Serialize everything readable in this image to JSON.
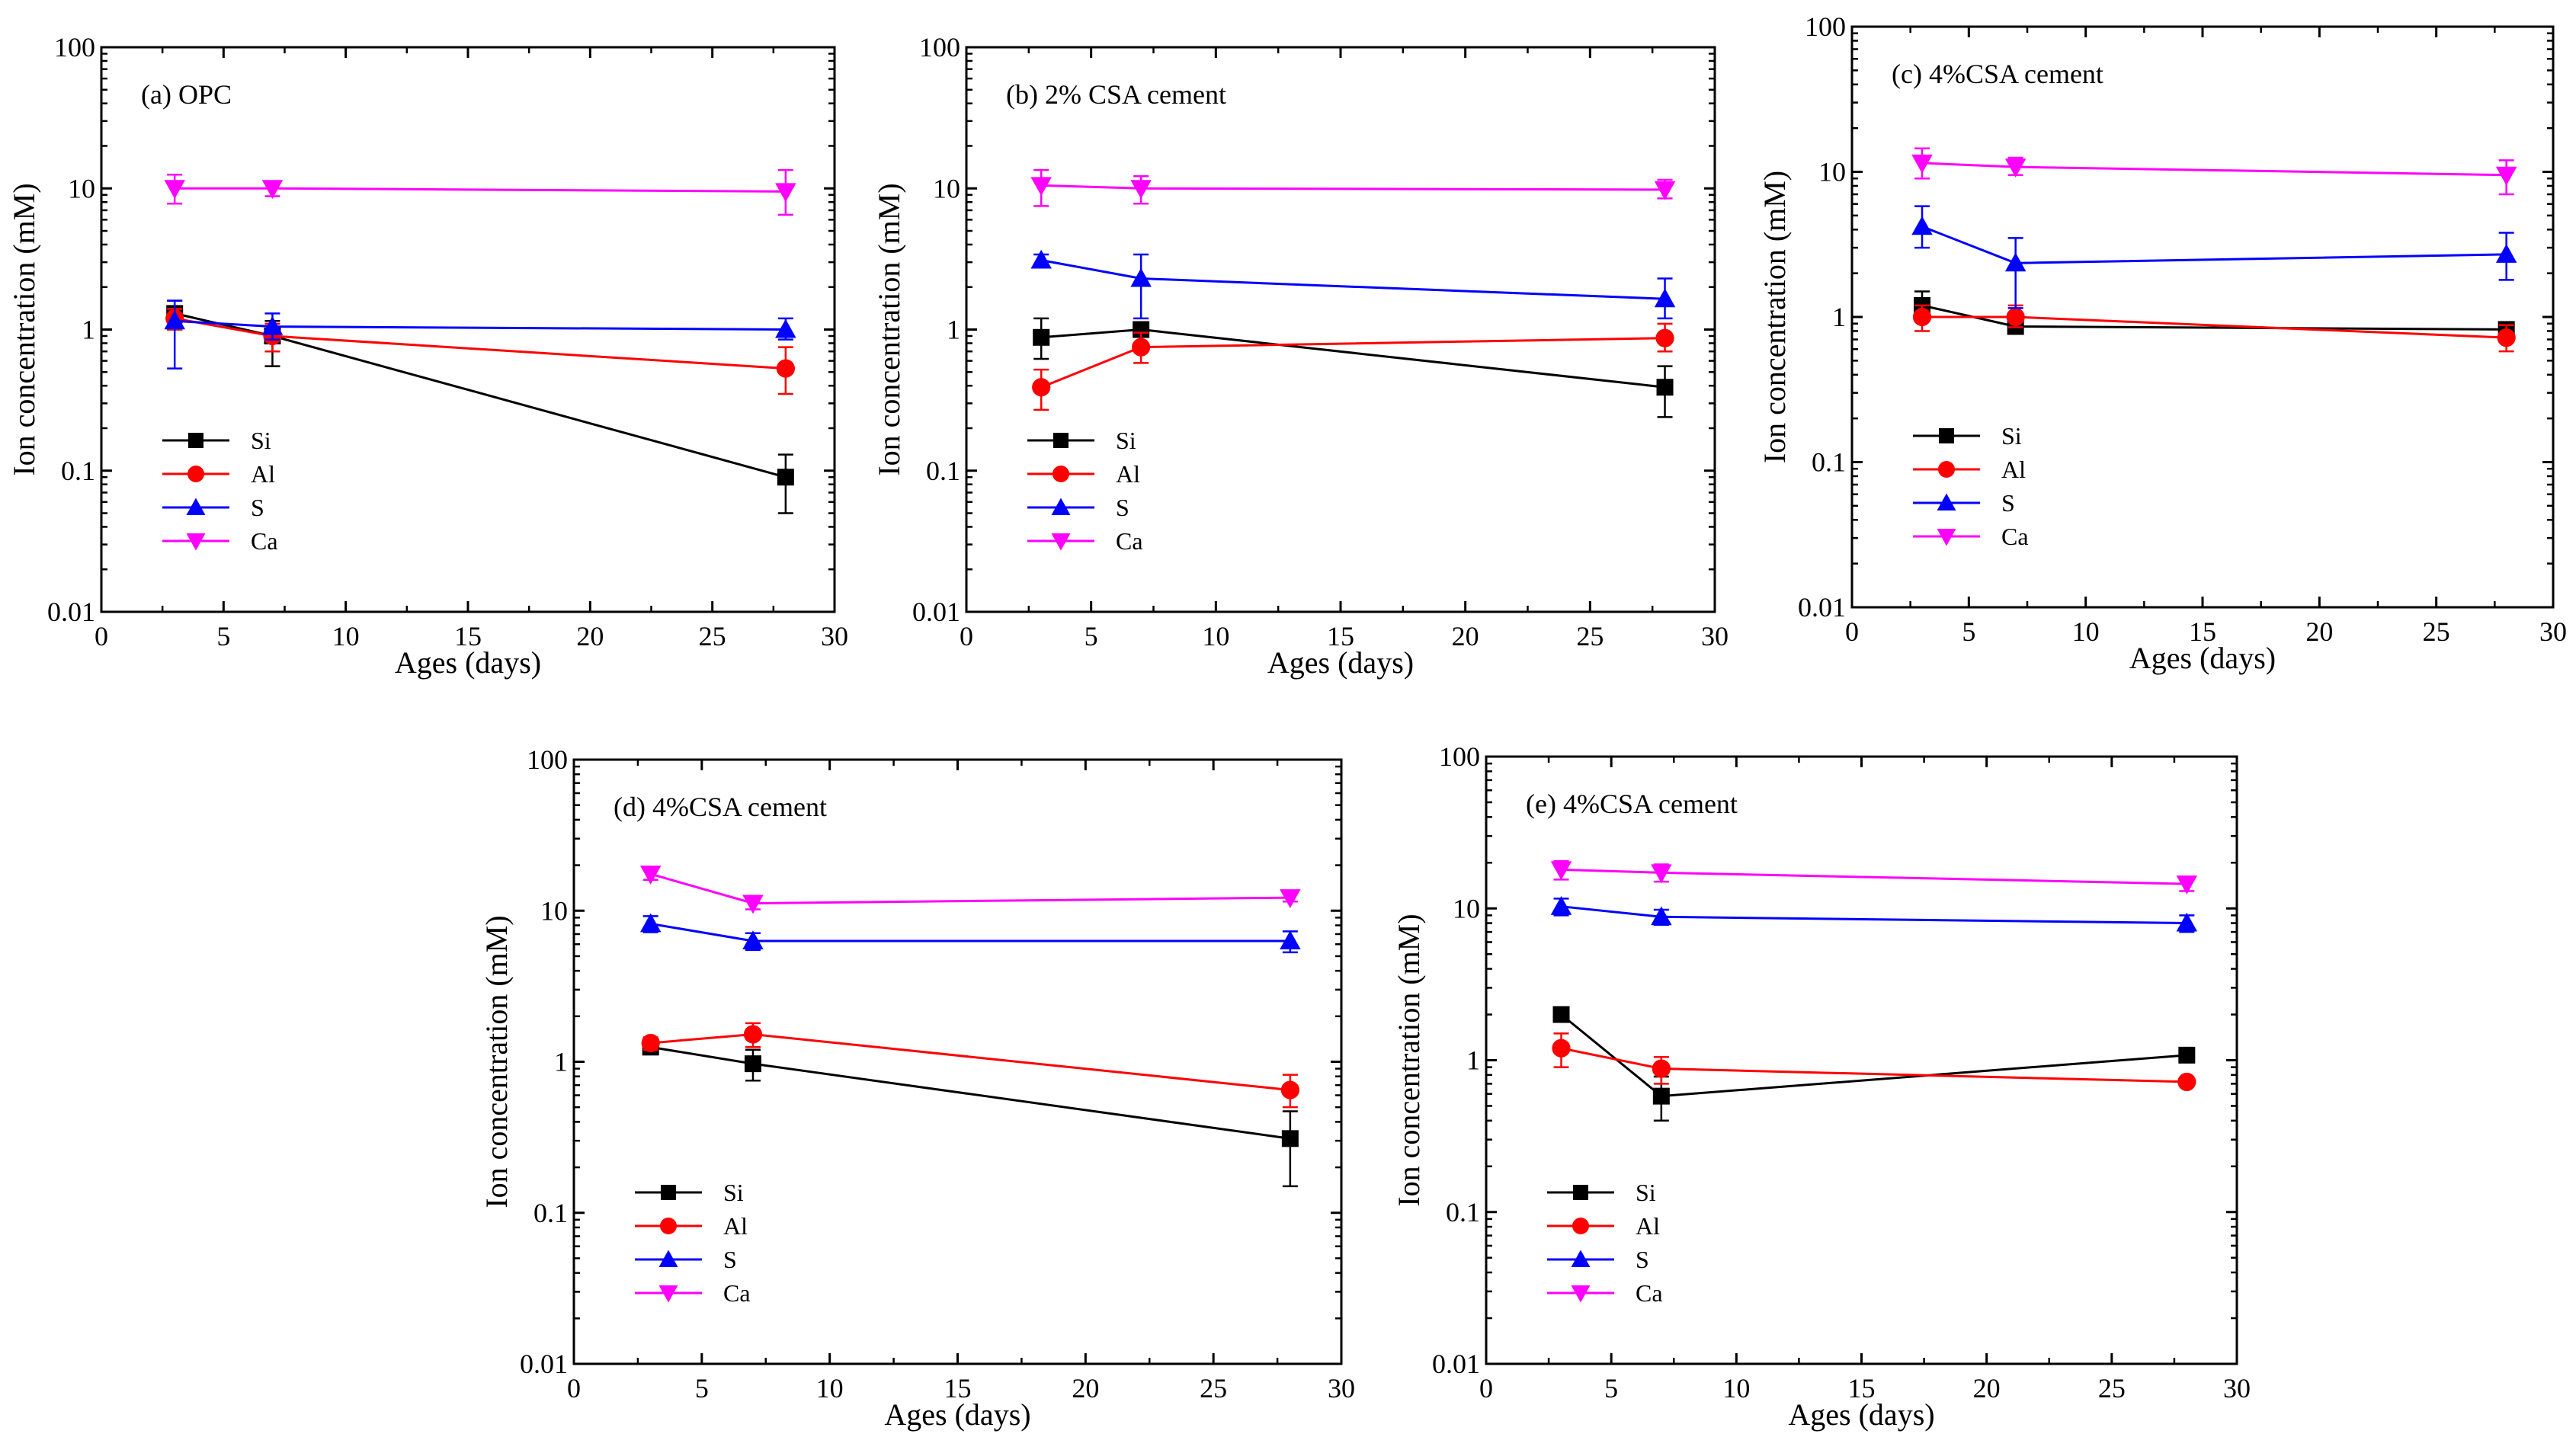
{
  "figure": {
    "xticks": [
      0,
      5,
      10,
      15,
      20,
      25,
      30
    ],
    "yticks": [
      {
        "value": 0.01,
        "label": "0.01"
      },
      {
        "value": 0.1,
        "label": "0.1"
      },
      {
        "value": 1,
        "label": "1"
      },
      {
        "value": 10,
        "label": "10"
      },
      {
        "value": 100,
        "label": "100"
      }
    ]
  },
  "chart_data": [
    {
      "type": "line",
      "title": "(a) OPC",
      "xlabel": "Ages (days)",
      "ylabel": "Ion concentration (mM)",
      "xlim": [
        0,
        30
      ],
      "ylim": [
        0.01,
        100
      ],
      "yscale": "log",
      "legend": "lower-left",
      "x": [
        3,
        7,
        28
      ],
      "series": [
        {
          "name": "Si",
          "marker": "square",
          "color": "#000000",
          "values": [
            1.3,
            0.9,
            0.09
          ],
          "err": [
            [
              1.0,
              1.6
            ],
            [
              0.55,
              1.15
            ],
            [
              0.05,
              0.13
            ]
          ]
        },
        {
          "name": "Al",
          "marker": "circle",
          "color": "#ff0000",
          "values": [
            1.2,
            0.9,
            0.53
          ],
          "err": [
            [
              1.0,
              1.4
            ],
            [
              0.7,
              1.1
            ],
            [
              0.35,
              0.75
            ]
          ]
        },
        {
          "name": "S",
          "marker": "triangle-up",
          "color": "#0000ff",
          "values": [
            1.15,
            1.05,
            1.0
          ],
          "err": [
            [
              0.53,
              1.6
            ],
            [
              0.85,
              1.3
            ],
            [
              0.85,
              1.2
            ]
          ]
        },
        {
          "name": "Ca",
          "marker": "triangle-down",
          "color": "#ff00ff",
          "values": [
            10.0,
            10.0,
            9.5
          ],
          "err": [
            [
              7.8,
              12.5
            ],
            [
              8.8,
              11.0
            ],
            [
              6.5,
              13.5
            ]
          ]
        }
      ]
    },
    {
      "type": "line",
      "title": "(b) 2% CSA cement",
      "xlabel": "Ages (days)",
      "ylabel": "Ion concentration (mM)",
      "xlim": [
        0,
        30
      ],
      "ylim": [
        0.01,
        100
      ],
      "yscale": "log",
      "legend": "lower-left",
      "x": [
        3,
        7,
        28
      ],
      "series": [
        {
          "name": "Si",
          "marker": "square",
          "color": "#000000",
          "values": [
            0.88,
            1.0,
            0.39
          ],
          "err": [
            [
              0.62,
              1.2
            ],
            [
              0.9,
              1.1
            ],
            [
              0.24,
              0.55
            ]
          ]
        },
        {
          "name": "Al",
          "marker": "circle",
          "color": "#ff0000",
          "values": [
            0.39,
            0.75,
            0.87
          ],
          "err": [
            [
              0.27,
              0.52
            ],
            [
              0.58,
              0.95
            ],
            [
              0.7,
              1.1
            ]
          ]
        },
        {
          "name": "S",
          "marker": "triangle-up",
          "color": "#0000ff",
          "values": [
            3.1,
            2.3,
            1.65
          ],
          "err": [
            [
              2.8,
              3.4
            ],
            [
              1.2,
              3.4
            ],
            [
              1.2,
              2.3
            ]
          ]
        },
        {
          "name": "Ca",
          "marker": "triangle-down",
          "color": "#ff00ff",
          "values": [
            10.5,
            10.0,
            9.8
          ],
          "err": [
            [
              7.5,
              13.5
            ],
            [
              7.8,
              12.2
            ],
            [
              8.5,
              11.5
            ]
          ]
        }
      ]
    },
    {
      "type": "line",
      "title": "(c) 4%CSA cement",
      "xlabel": "Ages (days)",
      "ylabel": "Ion concentration (mM)",
      "xlim": [
        0,
        30
      ],
      "ylim": [
        0.01,
        100
      ],
      "yscale": "log",
      "legend": "lower-left",
      "x": [
        3,
        7,
        28
      ],
      "series": [
        {
          "name": "Si",
          "marker": "square",
          "color": "#000000",
          "values": [
            1.2,
            0.86,
            0.82
          ],
          "err": [
            [
              0.95,
              1.5
            ],
            [
              0.78,
              0.95
            ],
            [
              0.72,
              0.92
            ]
          ]
        },
        {
          "name": "Al",
          "marker": "circle",
          "color": "#ff0000",
          "values": [
            1.0,
            1.0,
            0.72
          ],
          "err": [
            [
              0.8,
              1.2
            ],
            [
              0.85,
              1.2
            ],
            [
              0.58,
              0.88
            ]
          ]
        },
        {
          "name": "S",
          "marker": "triangle-up",
          "color": "#0000ff",
          "values": [
            4.2,
            2.35,
            2.7
          ],
          "err": [
            [
              3.0,
              5.8
            ],
            [
              1.15,
              3.5
            ],
            [
              1.8,
              3.8
            ]
          ]
        },
        {
          "name": "Ca",
          "marker": "triangle-down",
          "color": "#ff00ff",
          "values": [
            11.5,
            10.8,
            9.5
          ],
          "err": [
            [
              9.0,
              14.5
            ],
            [
              9.5,
              12.5
            ],
            [
              7.0,
              12.0
            ]
          ]
        }
      ]
    },
    {
      "type": "line",
      "title": "(d) 4%CSA cement",
      "xlabel": "Ages (days)",
      "ylabel": "Ion concentration (mM)",
      "xlim": [
        0,
        30
      ],
      "ylim": [
        0.01,
        100
      ],
      "yscale": "log",
      "legend": "lower-left",
      "x": [
        3,
        7,
        28
      ],
      "series": [
        {
          "name": "Si",
          "marker": "square",
          "color": "#000000",
          "values": [
            1.25,
            0.97,
            0.31
          ],
          "err": [
            [
              1.15,
              1.35
            ],
            [
              0.75,
              1.2
            ],
            [
              0.15,
              0.47
            ]
          ]
        },
        {
          "name": "Al",
          "marker": "circle",
          "color": "#ff0000",
          "values": [
            1.33,
            1.52,
            0.65
          ],
          "err": [
            [
              1.2,
              1.45
            ],
            [
              1.25,
              1.8
            ],
            [
              0.5,
              0.82
            ]
          ]
        },
        {
          "name": "S",
          "marker": "triangle-up",
          "color": "#0000ff",
          "values": [
            8.2,
            6.3,
            6.3
          ],
          "err": [
            [
              7.2,
              9.2
            ],
            [
              5.5,
              7.1
            ],
            [
              5.3,
              7.3
            ]
          ]
        },
        {
          "name": "Ca",
          "marker": "triangle-down",
          "color": "#ff00ff",
          "values": [
            17.5,
            11.2,
            12.2
          ],
          "err": [
            [
              16.0,
              19.0
            ],
            [
              10.2,
              12.2
            ],
            [
              11.5,
              13.0
            ]
          ]
        }
      ]
    },
    {
      "type": "line",
      "title": "(e) 4%CSA cement",
      "xlabel": "Ages (days)",
      "ylabel": "Ion concentration (mM)",
      "xlim": [
        0,
        30
      ],
      "ylim": [
        0.01,
        100
      ],
      "yscale": "log",
      "legend": "lower-left",
      "x": [
        3,
        7,
        28
      ],
      "series": [
        {
          "name": "Si",
          "marker": "square",
          "color": "#000000",
          "values": [
            2.0,
            0.58,
            1.08
          ],
          "err": [
            [
              1.9,
              2.1
            ],
            [
              0.4,
              0.78
            ],
            [
              0.98,
              1.18
            ]
          ]
        },
        {
          "name": "Al",
          "marker": "circle",
          "color": "#ff0000",
          "values": [
            1.2,
            0.88,
            0.72
          ],
          "err": [
            [
              0.9,
              1.5
            ],
            [
              0.7,
              1.05
            ],
            [
              0.68,
              0.76
            ]
          ]
        },
        {
          "name": "S",
          "marker": "triangle-up",
          "color": "#0000ff",
          "values": [
            10.3,
            8.8,
            8.0
          ],
          "err": [
            [
              9.0,
              11.6
            ],
            [
              7.8,
              9.8
            ],
            [
              7.0,
              9.0
            ]
          ]
        },
        {
          "name": "Ca",
          "marker": "triangle-down",
          "color": "#ff00ff",
          "values": [
            18.0,
            17.2,
            14.5
          ],
          "err": [
            [
              15.5,
              20.5
            ],
            [
              15.0,
              19.5
            ],
            [
              13.0,
              16.0
            ]
          ]
        }
      ]
    }
  ]
}
